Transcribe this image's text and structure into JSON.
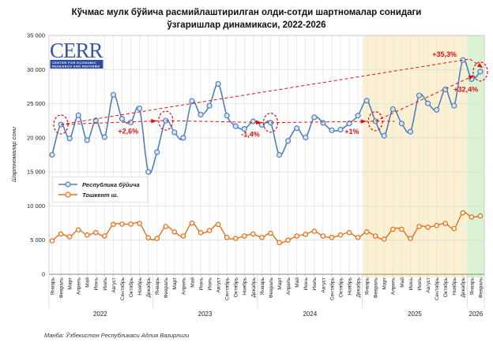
{
  "header": {
    "title_lines": [
      "Кўчмас мулк бўйича расмийлаштирилган олди-сотди шартномалар сонидаги",
      "ўзгаришлар динамикаси, 2022-2026"
    ]
  },
  "logo": {
    "name": "CERR",
    "subtitle_line1": "CENTER FOR ECONOMIC",
    "subtitle_line2": "RESEARCH AND REFORMS",
    "color": "#3a56a5",
    "band_color": "#2d4a9e"
  },
  "y_axis": {
    "label": "Шартномалар сони",
    "ticks": [
      "0",
      "5 000",
      "10 000",
      "15 000",
      "20 000",
      "25 000",
      "30 000",
      "35 000"
    ],
    "max": 35000,
    "step": 5000
  },
  "x_axis": {
    "months": [
      "Январь",
      "Февраль",
      "Март",
      "Апрель",
      "Май",
      "Июнь",
      "Июль",
      "Август",
      "Сентябрь",
      "Октябрь",
      "Ноябрь",
      "Декабрь"
    ],
    "years": [
      {
        "label": "2022",
        "n": 12
      },
      {
        "label": "2023",
        "n": 12
      },
      {
        "label": "2024",
        "n": 12
      },
      {
        "label": "2025",
        "n": 12
      },
      {
        "label": "2026",
        "n": 2
      }
    ]
  },
  "legend": {
    "items": [
      {
        "label": "Республика бўйича",
        "color": "#4f81bd",
        "marker_fill": "#d9e2f0"
      },
      {
        "label": "Тошкент ш.",
        "color": "#e2711d",
        "marker_fill": "#fdefe3"
      }
    ]
  },
  "source": "Манба: Ўзбекистон Республикаси Адлия Вазирлиги",
  "chart_data": {
    "type": "line",
    "title": "Кўчмас мулк бўйича расмийлаштирилган олди-сотди шартномалар сонидаги ўзгаришлар динамикаси, 2022-2026",
    "ylabel": "Шартномалар сони",
    "ylim": [
      0,
      35000
    ],
    "x_range": "Январь 2022 — Февраль 2026 (50 ойлик нуқта)",
    "series": [
      {
        "name": "Республика бўйича",
        "color": "#4f81bd",
        "marker_fill": "#d9e2f0",
        "values": [
          17500,
          21950,
          19900,
          23300,
          19650,
          22550,
          20100,
          26300,
          22800,
          22250,
          24300,
          15000,
          17900,
          22520,
          20800,
          20000,
          25400,
          23400,
          24700,
          27900,
          23250,
          21700,
          21300,
          22400,
          21900,
          22210,
          17500,
          19550,
          21400,
          20050,
          23000,
          22200,
          21100,
          21200,
          22100,
          23250,
          25450,
          22430,
          20300,
          24200,
          22100,
          20900,
          26200,
          25050,
          24100,
          27100,
          24700,
          31400,
          28600,
          29700
        ]
      },
      {
        "name": "Тошкент ш.",
        "color": "#e2711d",
        "marker_fill": "#fdefe3",
        "values": [
          4900,
          5900,
          5500,
          6500,
          5750,
          6100,
          5600,
          7300,
          7350,
          7350,
          7450,
          5350,
          5250,
          7000,
          6200,
          5600,
          7500,
          6100,
          6400,
          7300,
          5400,
          5250,
          5600,
          5900,
          5400,
          6000,
          4650,
          5000,
          5600,
          5850,
          6300,
          5600,
          5400,
          5750,
          6100,
          5400,
          6200,
          5600,
          5150,
          6600,
          6600,
          5250,
          7000,
          6900,
          7150,
          7450,
          6700,
          9000,
          8400,
          8550
        ]
      }
    ],
    "highlighted_points": {
      "series": "Республика бўйича",
      "indices": [
        1,
        13,
        25,
        37,
        49
      ],
      "note": "февраль ойлари қизил пунктир билан айлантирилган"
    },
    "annotations": [
      {
        "text": "+2,6%",
        "i": 8.7,
        "v": 20600
      },
      {
        "text": "-1,4%",
        "i": 22.7,
        "v": 20150
      },
      {
        "text": "+1%",
        "i": 34.3,
        "v": 20550
      },
      {
        "text": "+35,3%",
        "i": 44.9,
        "v": 31900
      },
      {
        "text": "+32,4%",
        "i": 47.35,
        "v": 26750
      }
    ],
    "feb_line": {
      "indices": [
        1,
        13,
        25,
        37
      ],
      "extend_to_i": 39.2,
      "arrow_at": [
        13,
        25,
        37
      ]
    },
    "trend_segments": [
      {
        "i1": 1,
        "v1": 21950,
        "i2": 47.8,
        "v2": 31550,
        "arrow": false
      },
      {
        "i1": 47.8,
        "v1": 31550,
        "i2": 49.3,
        "v2": 30250,
        "arrow": true
      },
      {
        "i1": 37,
        "v1": 22430,
        "i2": 48.3,
        "v2": 29150,
        "arrow": true
      }
    ],
    "bands": [
      {
        "from_i": 35.5,
        "to_i": 47.5,
        "color": "#fcf0d2"
      },
      {
        "from_i": 47.5,
        "to_i": 49.8,
        "color": "#d9f3d3"
      }
    ],
    "accent_red": "#e01010"
  }
}
